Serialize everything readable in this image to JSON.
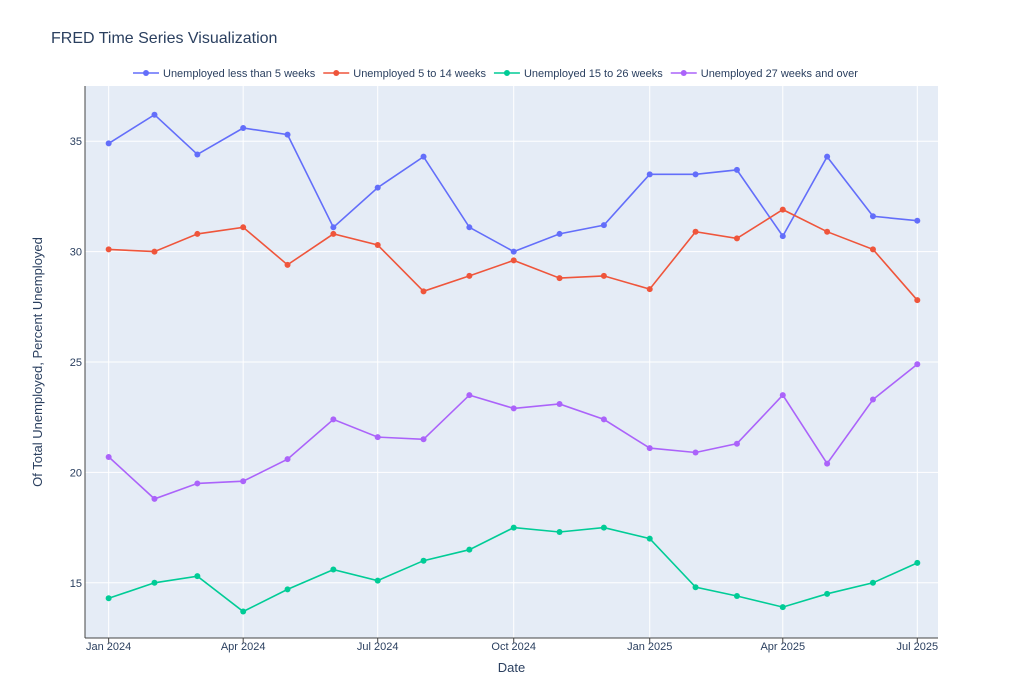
{
  "chart_data": {
    "type": "line",
    "title": "FRED Time Series Visualization",
    "xlabel": "Date",
    "ylabel": "Of Total Unemployed, Percent Unemployed",
    "x": [
      "2024-01",
      "2024-02",
      "2024-03",
      "2024-04",
      "2024-05",
      "2024-06",
      "2024-07",
      "2024-08",
      "2024-09",
      "2024-10",
      "2024-11",
      "2024-12",
      "2025-01",
      "2025-02",
      "2025-03",
      "2025-04",
      "2025-05",
      "2025-06",
      "2025-07"
    ],
    "x_ticks": [
      {
        "value": "2024-01",
        "label": "Jan 2024"
      },
      {
        "value": "2024-04",
        "label": "Apr 2024"
      },
      {
        "value": "2024-07",
        "label": "Jul 2024"
      },
      {
        "value": "2024-10",
        "label": "Oct 2024"
      },
      {
        "value": "2025-01",
        "label": "Jan 2025"
      },
      {
        "value": "2025-04",
        "label": "Apr 2025"
      },
      {
        "value": "2025-07",
        "label": "Jul 2025"
      }
    ],
    "y_ticks": [
      15,
      20,
      25,
      30,
      35
    ],
    "xlim": [
      "2023-12-16",
      "2025-07-15"
    ],
    "ylim": [
      12.5,
      37.5
    ],
    "grid": true,
    "legend_position": "top",
    "plot_bgcolor": "#e5ecf6",
    "series": [
      {
        "name": "Unemployed less than 5 weeks",
        "color": "#636efa",
        "values": [
          34.9,
          36.2,
          34.4,
          35.6,
          35.3,
          31.1,
          32.9,
          34.3,
          31.1,
          30.0,
          30.8,
          31.2,
          33.5,
          33.5,
          33.7,
          30.7,
          34.3,
          31.6,
          31.4
        ]
      },
      {
        "name": "Unemployed 5 to 14 weeks",
        "color": "#ef553b",
        "values": [
          30.1,
          30.0,
          30.8,
          31.1,
          29.4,
          30.8,
          30.3,
          28.2,
          28.9,
          29.6,
          28.8,
          28.9,
          28.3,
          30.9,
          30.6,
          31.9,
          30.9,
          30.1,
          27.8
        ]
      },
      {
        "name": "Unemployed 15 to 26 weeks",
        "color": "#00cc96",
        "values": [
          14.3,
          15.0,
          15.3,
          13.7,
          14.7,
          15.6,
          15.1,
          16.0,
          16.5,
          17.5,
          17.3,
          17.5,
          17.0,
          14.8,
          14.4,
          13.9,
          14.5,
          15.0,
          15.9
        ]
      },
      {
        "name": "Unemployed 27 weeks and over",
        "color": "#ab63fa",
        "values": [
          20.7,
          18.8,
          19.5,
          19.6,
          20.6,
          22.4,
          21.6,
          21.5,
          23.5,
          22.9,
          23.1,
          22.4,
          21.1,
          20.9,
          21.3,
          23.5,
          20.4,
          23.3,
          24.9
        ]
      }
    ]
  }
}
